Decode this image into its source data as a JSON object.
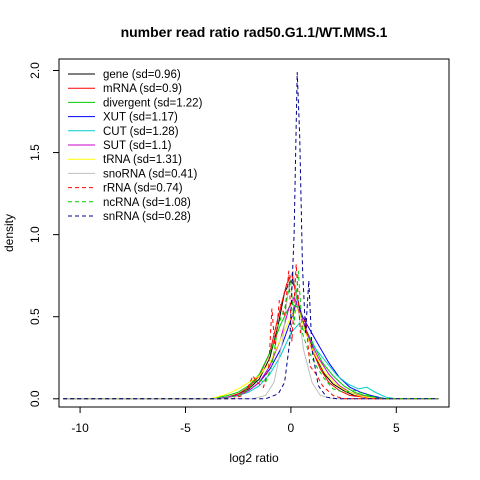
{
  "chart_data": {
    "type": "line",
    "title": "number read ratio rad50.G1.1/WT.MMS.1",
    "xlabel": "log2 ratio",
    "ylabel": "density",
    "xlim": [
      -11,
      7.5
    ],
    "ylim": [
      -0.05,
      2.07
    ],
    "xticks": [
      -10,
      -5,
      0,
      5
    ],
    "yticks": [
      0.0,
      0.5,
      1.0,
      1.5,
      2.0
    ],
    "xtick_labels": [
      "-10",
      "-5",
      "0",
      "5"
    ],
    "ytick_labels": [
      "0.0",
      "0.5",
      "1.0",
      "1.5",
      "2.0"
    ],
    "grid": false,
    "legend_position": "top-left",
    "series": [
      {
        "name": "gene (sd=0.96)",
        "color": "#000000",
        "dash": "solid",
        "points": [
          [
            -10.8,
            0
          ],
          [
            -3.5,
            0
          ],
          [
            -3,
            0.01
          ],
          [
            -2.5,
            0.03
          ],
          [
            -2,
            0.06
          ],
          [
            -1.5,
            0.12
          ],
          [
            -1,
            0.25
          ],
          [
            -0.6,
            0.45
          ],
          [
            -0.3,
            0.65
          ],
          [
            0,
            0.72
          ],
          [
            0.2,
            0.68
          ],
          [
            0.5,
            0.5
          ],
          [
            0.8,
            0.38
          ],
          [
            1.2,
            0.25
          ],
          [
            1.6,
            0.15
          ],
          [
            2,
            0.09
          ],
          [
            2.5,
            0.05
          ],
          [
            3,
            0.02
          ],
          [
            3.5,
            0.01
          ],
          [
            4,
            0
          ],
          [
            7,
            0
          ]
        ]
      },
      {
        "name": "mRNA (sd=0.9)",
        "color": "#ff0000",
        "dash": "solid",
        "points": [
          [
            -10.8,
            0
          ],
          [
            -3.5,
            0
          ],
          [
            -3,
            0.01
          ],
          [
            -2.5,
            0.03
          ],
          [
            -2,
            0.07
          ],
          [
            -1.5,
            0.14
          ],
          [
            -1,
            0.28
          ],
          [
            -0.6,
            0.5
          ],
          [
            -0.2,
            0.7
          ],
          [
            0.05,
            0.76
          ],
          [
            0.3,
            0.6
          ],
          [
            0.6,
            0.45
          ],
          [
            1,
            0.3
          ],
          [
            1.4,
            0.18
          ],
          [
            1.8,
            0.1
          ],
          [
            2.3,
            0.05
          ],
          [
            2.8,
            0.02
          ],
          [
            3.5,
            0.01
          ],
          [
            4,
            0
          ],
          [
            7,
            0
          ]
        ]
      },
      {
        "name": "divergent (sd=1.22)",
        "color": "#00cd00",
        "dash": "solid",
        "points": [
          [
            -10.8,
            0
          ],
          [
            -3.8,
            0
          ],
          [
            -3,
            0.02
          ],
          [
            -2.5,
            0.04
          ],
          [
            -2,
            0.08
          ],
          [
            -1.5,
            0.15
          ],
          [
            -1,
            0.28
          ],
          [
            -0.5,
            0.45
          ],
          [
            0,
            0.58
          ],
          [
            0.3,
            0.56
          ],
          [
            0.6,
            0.45
          ],
          [
            1,
            0.35
          ],
          [
            1.5,
            0.22
          ],
          [
            2,
            0.14
          ],
          [
            2.5,
            0.08
          ],
          [
            3,
            0.04
          ],
          [
            3.5,
            0.02
          ],
          [
            4,
            0.01
          ],
          [
            4.5,
            0
          ],
          [
            7,
            0
          ]
        ]
      },
      {
        "name": "XUT (sd=1.17)",
        "color": "#0000ff",
        "dash": "solid",
        "points": [
          [
            -10.8,
            0
          ],
          [
            -3.5,
            0
          ],
          [
            -2.5,
            0.02
          ],
          [
            -2,
            0.05
          ],
          [
            -1.5,
            0.1
          ],
          [
            -1,
            0.18
          ],
          [
            -0.5,
            0.3
          ],
          [
            0,
            0.48
          ],
          [
            0.3,
            0.6
          ],
          [
            0.55,
            0.5
          ],
          [
            0.9,
            0.42
          ],
          [
            1.3,
            0.33
          ],
          [
            1.8,
            0.22
          ],
          [
            2.3,
            0.13
          ],
          [
            2.8,
            0.07
          ],
          [
            3.3,
            0.04
          ],
          [
            3.8,
            0.02
          ],
          [
            4.5,
            0
          ],
          [
            7,
            0
          ]
        ]
      },
      {
        "name": "CUT (sd=1.28)",
        "color": "#00cdcd",
        "dash": "solid",
        "points": [
          [
            -10.8,
            0
          ],
          [
            -3.5,
            0
          ],
          [
            -2.5,
            0.02
          ],
          [
            -2,
            0.04
          ],
          [
            -1.5,
            0.08
          ],
          [
            -1,
            0.15
          ],
          [
            -0.5,
            0.26
          ],
          [
            0,
            0.4
          ],
          [
            0.4,
            0.46
          ],
          [
            0.8,
            0.38
          ],
          [
            1.2,
            0.3
          ],
          [
            1.7,
            0.22
          ],
          [
            2.2,
            0.14
          ],
          [
            2.7,
            0.09
          ],
          [
            3.2,
            0.06
          ],
          [
            3.6,
            0.07
          ],
          [
            4,
            0.04
          ],
          [
            4.5,
            0.01
          ],
          [
            5,
            0
          ],
          [
            7,
            0
          ]
        ]
      },
      {
        "name": "SUT (sd=1.1)",
        "color": "#cd00cd",
        "dash": "solid",
        "points": [
          [
            -10.8,
            0
          ],
          [
            -3.5,
            0
          ],
          [
            -2.5,
            0.02
          ],
          [
            -2,
            0.05
          ],
          [
            -1.5,
            0.1
          ],
          [
            -1,
            0.2
          ],
          [
            -0.5,
            0.36
          ],
          [
            -0.1,
            0.55
          ],
          [
            0.15,
            0.62
          ],
          [
            0.5,
            0.5
          ],
          [
            0.9,
            0.36
          ],
          [
            1.3,
            0.25
          ],
          [
            1.8,
            0.15
          ],
          [
            2.3,
            0.08
          ],
          [
            2.8,
            0.04
          ],
          [
            3.3,
            0.02
          ],
          [
            4,
            0
          ],
          [
            7,
            0
          ]
        ]
      },
      {
        "name": "tRNA (sd=1.31)",
        "color": "#ffff00",
        "dash": "solid",
        "points": [
          [
            -10.8,
            0
          ],
          [
            -3.8,
            0
          ],
          [
            -3,
            0.03
          ],
          [
            -2.5,
            0.06
          ],
          [
            -2,
            0.1
          ],
          [
            -1.5,
            0.14
          ],
          [
            -1,
            0.22
          ],
          [
            -0.5,
            0.36
          ],
          [
            0,
            0.5
          ],
          [
            0.35,
            0.55
          ],
          [
            0.7,
            0.4
          ],
          [
            1.1,
            0.28
          ],
          [
            1.6,
            0.16
          ],
          [
            2.1,
            0.09
          ],
          [
            2.6,
            0.05
          ],
          [
            3.2,
            0.02
          ],
          [
            4,
            0
          ],
          [
            7,
            0
          ]
        ]
      },
      {
        "name": "snoRNA (sd=0.41)",
        "color": "#bebebe",
        "dash": "solid",
        "points": [
          [
            -10.8,
            0
          ],
          [
            -1.8,
            0
          ],
          [
            -1.2,
            0.02
          ],
          [
            -0.8,
            0.1
          ],
          [
            -0.4,
            0.35
          ],
          [
            -0.1,
            0.7
          ],
          [
            0.1,
            0.78
          ],
          [
            0.3,
            0.6
          ],
          [
            0.6,
            0.3
          ],
          [
            1,
            0.1
          ],
          [
            1.4,
            0.02
          ],
          [
            2,
            0
          ],
          [
            7,
            0
          ]
        ]
      },
      {
        "name": "rRNA (sd=0.74)",
        "color": "#ff0000",
        "dash": "dashed",
        "points": [
          [
            -10.8,
            0
          ],
          [
            -2.8,
            0
          ],
          [
            -2.3,
            0.02
          ],
          [
            -2,
            0.08
          ],
          [
            -1.8,
            0.14
          ],
          [
            -1.6,
            0.1
          ],
          [
            -1.3,
            0.07
          ],
          [
            -1.05,
            0.2
          ],
          [
            -0.9,
            0.55
          ],
          [
            -0.75,
            0.3
          ],
          [
            -0.55,
            0.6
          ],
          [
            -0.3,
            0.5
          ],
          [
            -0.1,
            0.78
          ],
          [
            0.05,
            0.35
          ],
          [
            0.25,
            0.82
          ],
          [
            0.45,
            0.4
          ],
          [
            0.7,
            0.5
          ],
          [
            0.9,
            0.2
          ],
          [
            1.2,
            0.15
          ],
          [
            1.5,
            0.08
          ],
          [
            2,
            0.02
          ],
          [
            2.5,
            0
          ],
          [
            7,
            0
          ]
        ]
      },
      {
        "name": "ncRNA (sd=1.08)",
        "color": "#00cd00",
        "dash": "dashed",
        "points": [
          [
            -10.8,
            0
          ],
          [
            -3.3,
            0
          ],
          [
            -2.5,
            0.02
          ],
          [
            -2,
            0.06
          ],
          [
            -1.6,
            0.12
          ],
          [
            -1.2,
            0.1
          ],
          [
            -0.9,
            0.2
          ],
          [
            -0.6,
            0.45
          ],
          [
            -0.3,
            0.55
          ],
          [
            0,
            0.72
          ],
          [
            0.15,
            0.45
          ],
          [
            0.35,
            0.78
          ],
          [
            0.55,
            0.4
          ],
          [
            0.8,
            0.3
          ],
          [
            1.2,
            0.2
          ],
          [
            1.6,
            0.12
          ],
          [
            2,
            0.06
          ],
          [
            2.5,
            0.04
          ],
          [
            3,
            0.05
          ],
          [
            3.5,
            0.03
          ],
          [
            4,
            0.01
          ],
          [
            4.5,
            0
          ],
          [
            7,
            0
          ]
        ]
      },
      {
        "name": "snRNA (sd=0.28)",
        "color": "#00008b",
        "dash": "dashed",
        "points": [
          [
            -10.8,
            0
          ],
          [
            -1.2,
            0
          ],
          [
            -0.6,
            0.03
          ],
          [
            -0.3,
            0.1
          ],
          [
            -0.05,
            0.35
          ],
          [
            0.15,
            1.0
          ],
          [
            0.3,
            1.99
          ],
          [
            0.42,
            1.6
          ],
          [
            0.55,
            0.8
          ],
          [
            0.7,
            0.4
          ],
          [
            0.85,
            0.72
          ],
          [
            1.0,
            0.3
          ],
          [
            1.3,
            0.08
          ],
          [
            1.7,
            0.01
          ],
          [
            2.2,
            0
          ],
          [
            7,
            0
          ]
        ]
      }
    ]
  }
}
